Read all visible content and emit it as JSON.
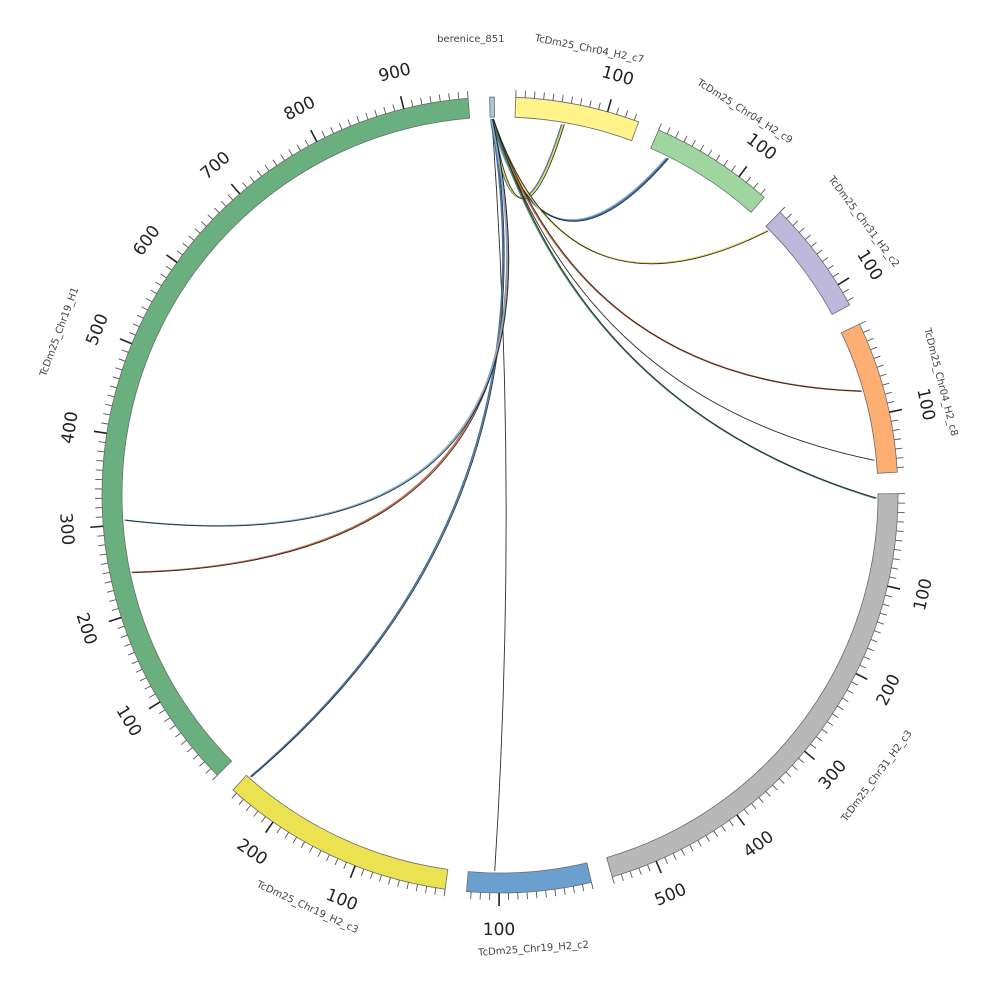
{
  "chart_data": {
    "type": "circos",
    "unit_ticks": "minor tick every 10, major labeled tick every 100",
    "segments": [
      {
        "id": "berenice",
        "label": "berenice_851",
        "length": 5,
        "color": "#a9c8e0"
      },
      {
        "id": "chr04_c7",
        "label": "TcDm25_Chr04_H2_c7",
        "length": 135,
        "color": "#fff38a"
      },
      {
        "id": "chr04_c9",
        "label": "TcDm25_Chr04_H2_c9",
        "length": 135,
        "color": "#9fd69f"
      },
      {
        "id": "chr31_c2",
        "label": "TcDm25_Chr31_H2_c2",
        "length": 125,
        "color": "#bdb8dc"
      },
      {
        "id": "chr04_c8",
        "label": "TcDm25_Chr04_H2_c8",
        "length": 165,
        "color": "#fdae72"
      },
      {
        "id": "chr31_c3",
        "label": "TcDm25_Chr31_H2_c3",
        "length": 550,
        "color": "#b8b8b8"
      },
      {
        "id": "chr19_c2",
        "label": "TcDm25_Chr19_H2_c2",
        "length": 135,
        "color": "#6b9fcf"
      },
      {
        "id": "chr19_c3",
        "label": "TcDm25_Chr19_H2_c3",
        "length": 255,
        "color": "#ebe251"
      },
      {
        "id": "chr19_H1",
        "label": "TcDm25_Chr19_H1",
        "length": 970,
        "color": "#6aaf7e"
      }
    ],
    "links": [
      {
        "from": "berenice",
        "from_pos": 2,
        "to": "chr04_c7",
        "to_pos": 55,
        "colors": [
          "#3c6fa1",
          "#e7d84a",
          "#222222"
        ]
      },
      {
        "from": "berenice",
        "from_pos": 2,
        "to": "chr04_c9",
        "to_pos": 22,
        "colors": [
          "#7fb0d6",
          "#3c6fa1",
          "#222222"
        ]
      },
      {
        "from": "berenice",
        "from_pos": 3,
        "to": "chr31_c2",
        "to_pos": 5,
        "colors": [
          "#e7d84a",
          "#222222"
        ]
      },
      {
        "from": "berenice",
        "from_pos": 3,
        "to": "chr04_c8",
        "to_pos": 150,
        "colors": [
          "#222222"
        ]
      },
      {
        "from": "berenice",
        "from_pos": 3,
        "to": "chr04_c8",
        "to_pos": 70,
        "colors": [
          "#c8643c",
          "#222222"
        ]
      },
      {
        "from": "berenice",
        "from_pos": 3,
        "to": "chr31_c3",
        "to_pos": 5,
        "colors": [
          "#3d8a55",
          "#222222"
        ]
      },
      {
        "from": "berenice",
        "from_pos": 2,
        "to": "chr19_c2",
        "to_pos": 105,
        "colors": [
          "#222222"
        ]
      },
      {
        "from": "berenice",
        "from_pos": 2,
        "to": "chr19_c3",
        "to_pos": 250,
        "colors": [
          "#3c6fa1",
          "#222222"
        ]
      },
      {
        "from": "berenice",
        "from_pos": 2,
        "to": "chr19_H1",
        "to_pos": 245,
        "colors": [
          "#c8643c",
          "#222222"
        ]
      },
      {
        "from": "berenice",
        "from_pos": 2,
        "to": "chr19_H1",
        "to_pos": 305,
        "colors": [
          "#7fb0d6",
          "#222222"
        ]
      }
    ]
  }
}
